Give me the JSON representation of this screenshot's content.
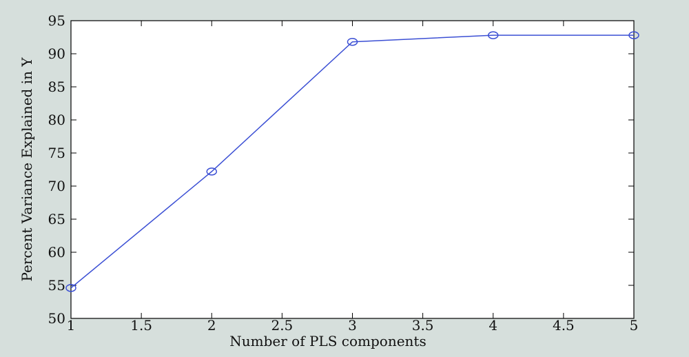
{
  "chart_data": {
    "type": "line",
    "x_label": "Number of PLS components",
    "y_label": "Percent Variance Explained in Y",
    "x": [
      1,
      2,
      3,
      4,
      5
    ],
    "series": [
      {
        "name": "Percent Variance Explained",
        "color": "#3b4fd4",
        "values": [
          54.6,
          72.2,
          91.8,
          92.8,
          92.8
        ]
      }
    ],
    "xlim": [
      1,
      5
    ],
    "xticks": [
      1,
      1.5,
      2,
      2.5,
      3,
      3.5,
      4,
      4.5,
      5
    ],
    "ylim": [
      50,
      95
    ],
    "yticks": [
      50,
      55,
      60,
      65,
      70,
      75,
      80,
      85,
      90,
      95
    ],
    "grid": false
  }
}
